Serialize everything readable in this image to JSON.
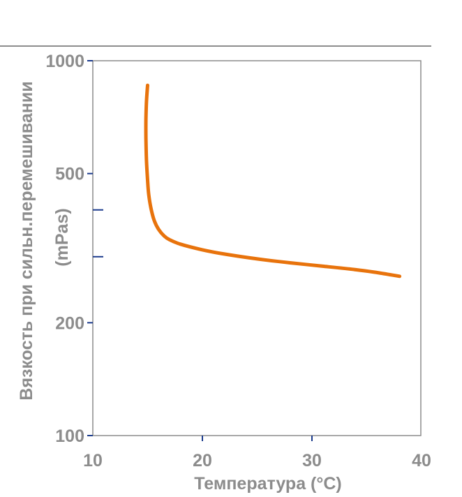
{
  "chart_data": {
    "type": "line",
    "xlabel": "Температура (°C)",
    "ylabel_line1": "Вязкость при сильн.перемешивании",
    "ylabel_line2": "(mPas)",
    "x_scale": "linear",
    "y_scale": "log",
    "xlim": [
      10,
      40
    ],
    "ylim": [
      100,
      1000
    ],
    "x_ticks": [
      10,
      20,
      30,
      40
    ],
    "x_tick_labels": [
      "10",
      "20",
      "30",
      "40"
    ],
    "y_ticks": [
      100,
      200,
      500,
      1000
    ],
    "y_tick_labels": [
      "100",
      "200",
      "500",
      "1000"
    ],
    "y_minor_ticks": [
      400,
      300
    ],
    "grid": false,
    "series": [
      {
        "color": "#e8730c",
        "x": [
          15.0,
          14.9,
          14.85,
          14.85,
          14.9,
          15.0,
          15.1,
          15.3,
          15.6,
          16.0,
          16.5,
          17.0,
          18.0,
          20.0,
          22.0,
          25.0,
          28.0,
          31.0,
          34.0,
          36.0,
          38.0
        ],
        "y": [
          860,
          780,
          700,
          620,
          540,
          480,
          440,
          405,
          375,
          355,
          341,
          333,
          324,
          313,
          305,
          296,
          289,
          283,
          277,
          272,
          266
        ]
      }
    ]
  },
  "colors": {
    "line": "#e8730c",
    "axis": "#8c8c8c",
    "tick": "#1a3a8c",
    "text": "#8c8c8c"
  }
}
